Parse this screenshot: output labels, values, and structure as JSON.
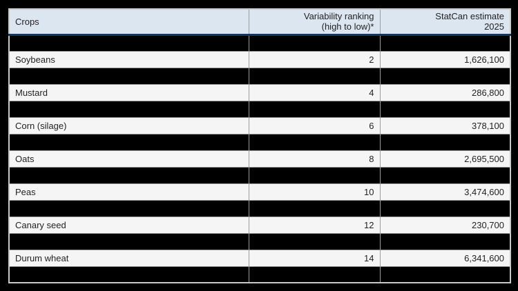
{
  "colors": {
    "page_background": "#000000",
    "header_background": "#dce6f1",
    "header_bottom_border": "#16365c",
    "row_background": "#f5f5f5",
    "redacted_row_background": "#000000",
    "grid_line": "#9d9d9d",
    "table_outer_border": "#c9c9c9",
    "text": "#222222"
  },
  "header": {
    "crops_label": "Crops",
    "variability_line1": "Variability ranking",
    "variability_line2": "(high to low)*",
    "estimate_line1": "StatCan estimate",
    "estimate_line2": "2025"
  },
  "rows": [
    {
      "redacted": true,
      "crop": "",
      "rank": "",
      "estimate": ""
    },
    {
      "redacted": false,
      "crop": "Soybeans",
      "rank": "2",
      "estimate": "1,626,100"
    },
    {
      "redacted": true,
      "crop": "",
      "rank": "",
      "estimate": ""
    },
    {
      "redacted": false,
      "crop": "Mustard",
      "rank": "4",
      "estimate": "286,800"
    },
    {
      "redacted": true,
      "crop": "",
      "rank": "",
      "estimate": ""
    },
    {
      "redacted": false,
      "crop": "Corn (silage)",
      "rank": "6",
      "estimate": "378,100"
    },
    {
      "redacted": true,
      "crop": "",
      "rank": "",
      "estimate": ""
    },
    {
      "redacted": false,
      "crop": "Oats",
      "rank": "8",
      "estimate": "2,695,500"
    },
    {
      "redacted": true,
      "crop": "",
      "rank": "",
      "estimate": ""
    },
    {
      "redacted": false,
      "crop": "Peas",
      "rank": "10",
      "estimate": "3,474,600"
    },
    {
      "redacted": true,
      "crop": "",
      "rank": "",
      "estimate": ""
    },
    {
      "redacted": false,
      "crop": "Canary seed",
      "rank": "12",
      "estimate": "230,700"
    },
    {
      "redacted": true,
      "crop": "",
      "rank": "",
      "estimate": ""
    },
    {
      "redacted": false,
      "crop": "Durum wheat",
      "rank": "14",
      "estimate": "6,341,600"
    },
    {
      "redacted": true,
      "crop": "",
      "rank": "",
      "estimate": ""
    }
  ],
  "chart_data": {
    "type": "table",
    "columns": [
      "Crops",
      "Variability ranking (high to low)*",
      "StatCan estimate 2025"
    ],
    "visible_rows": [
      {
        "crop": "Soybeans",
        "variability_rank": 2,
        "statcan_estimate_2025": 1626100
      },
      {
        "crop": "Mustard",
        "variability_rank": 4,
        "statcan_estimate_2025": 286800
      },
      {
        "crop": "Corn (silage)",
        "variability_rank": 6,
        "statcan_estimate_2025": 378100
      },
      {
        "crop": "Oats",
        "variability_rank": 8,
        "statcan_estimate_2025": 2695500
      },
      {
        "crop": "Peas",
        "variability_rank": 10,
        "statcan_estimate_2025": 3474600
      },
      {
        "crop": "Canary seed",
        "variability_rank": 12,
        "statcan_estimate_2025": 230700
      },
      {
        "crop": "Durum wheat",
        "variability_rank": 14,
        "statcan_estimate_2025": 6341600
      }
    ],
    "layout_note": "15 data rows total; every other row (rows 1,3,5,7,9,11,13,15) is blacked out/redacted"
  }
}
